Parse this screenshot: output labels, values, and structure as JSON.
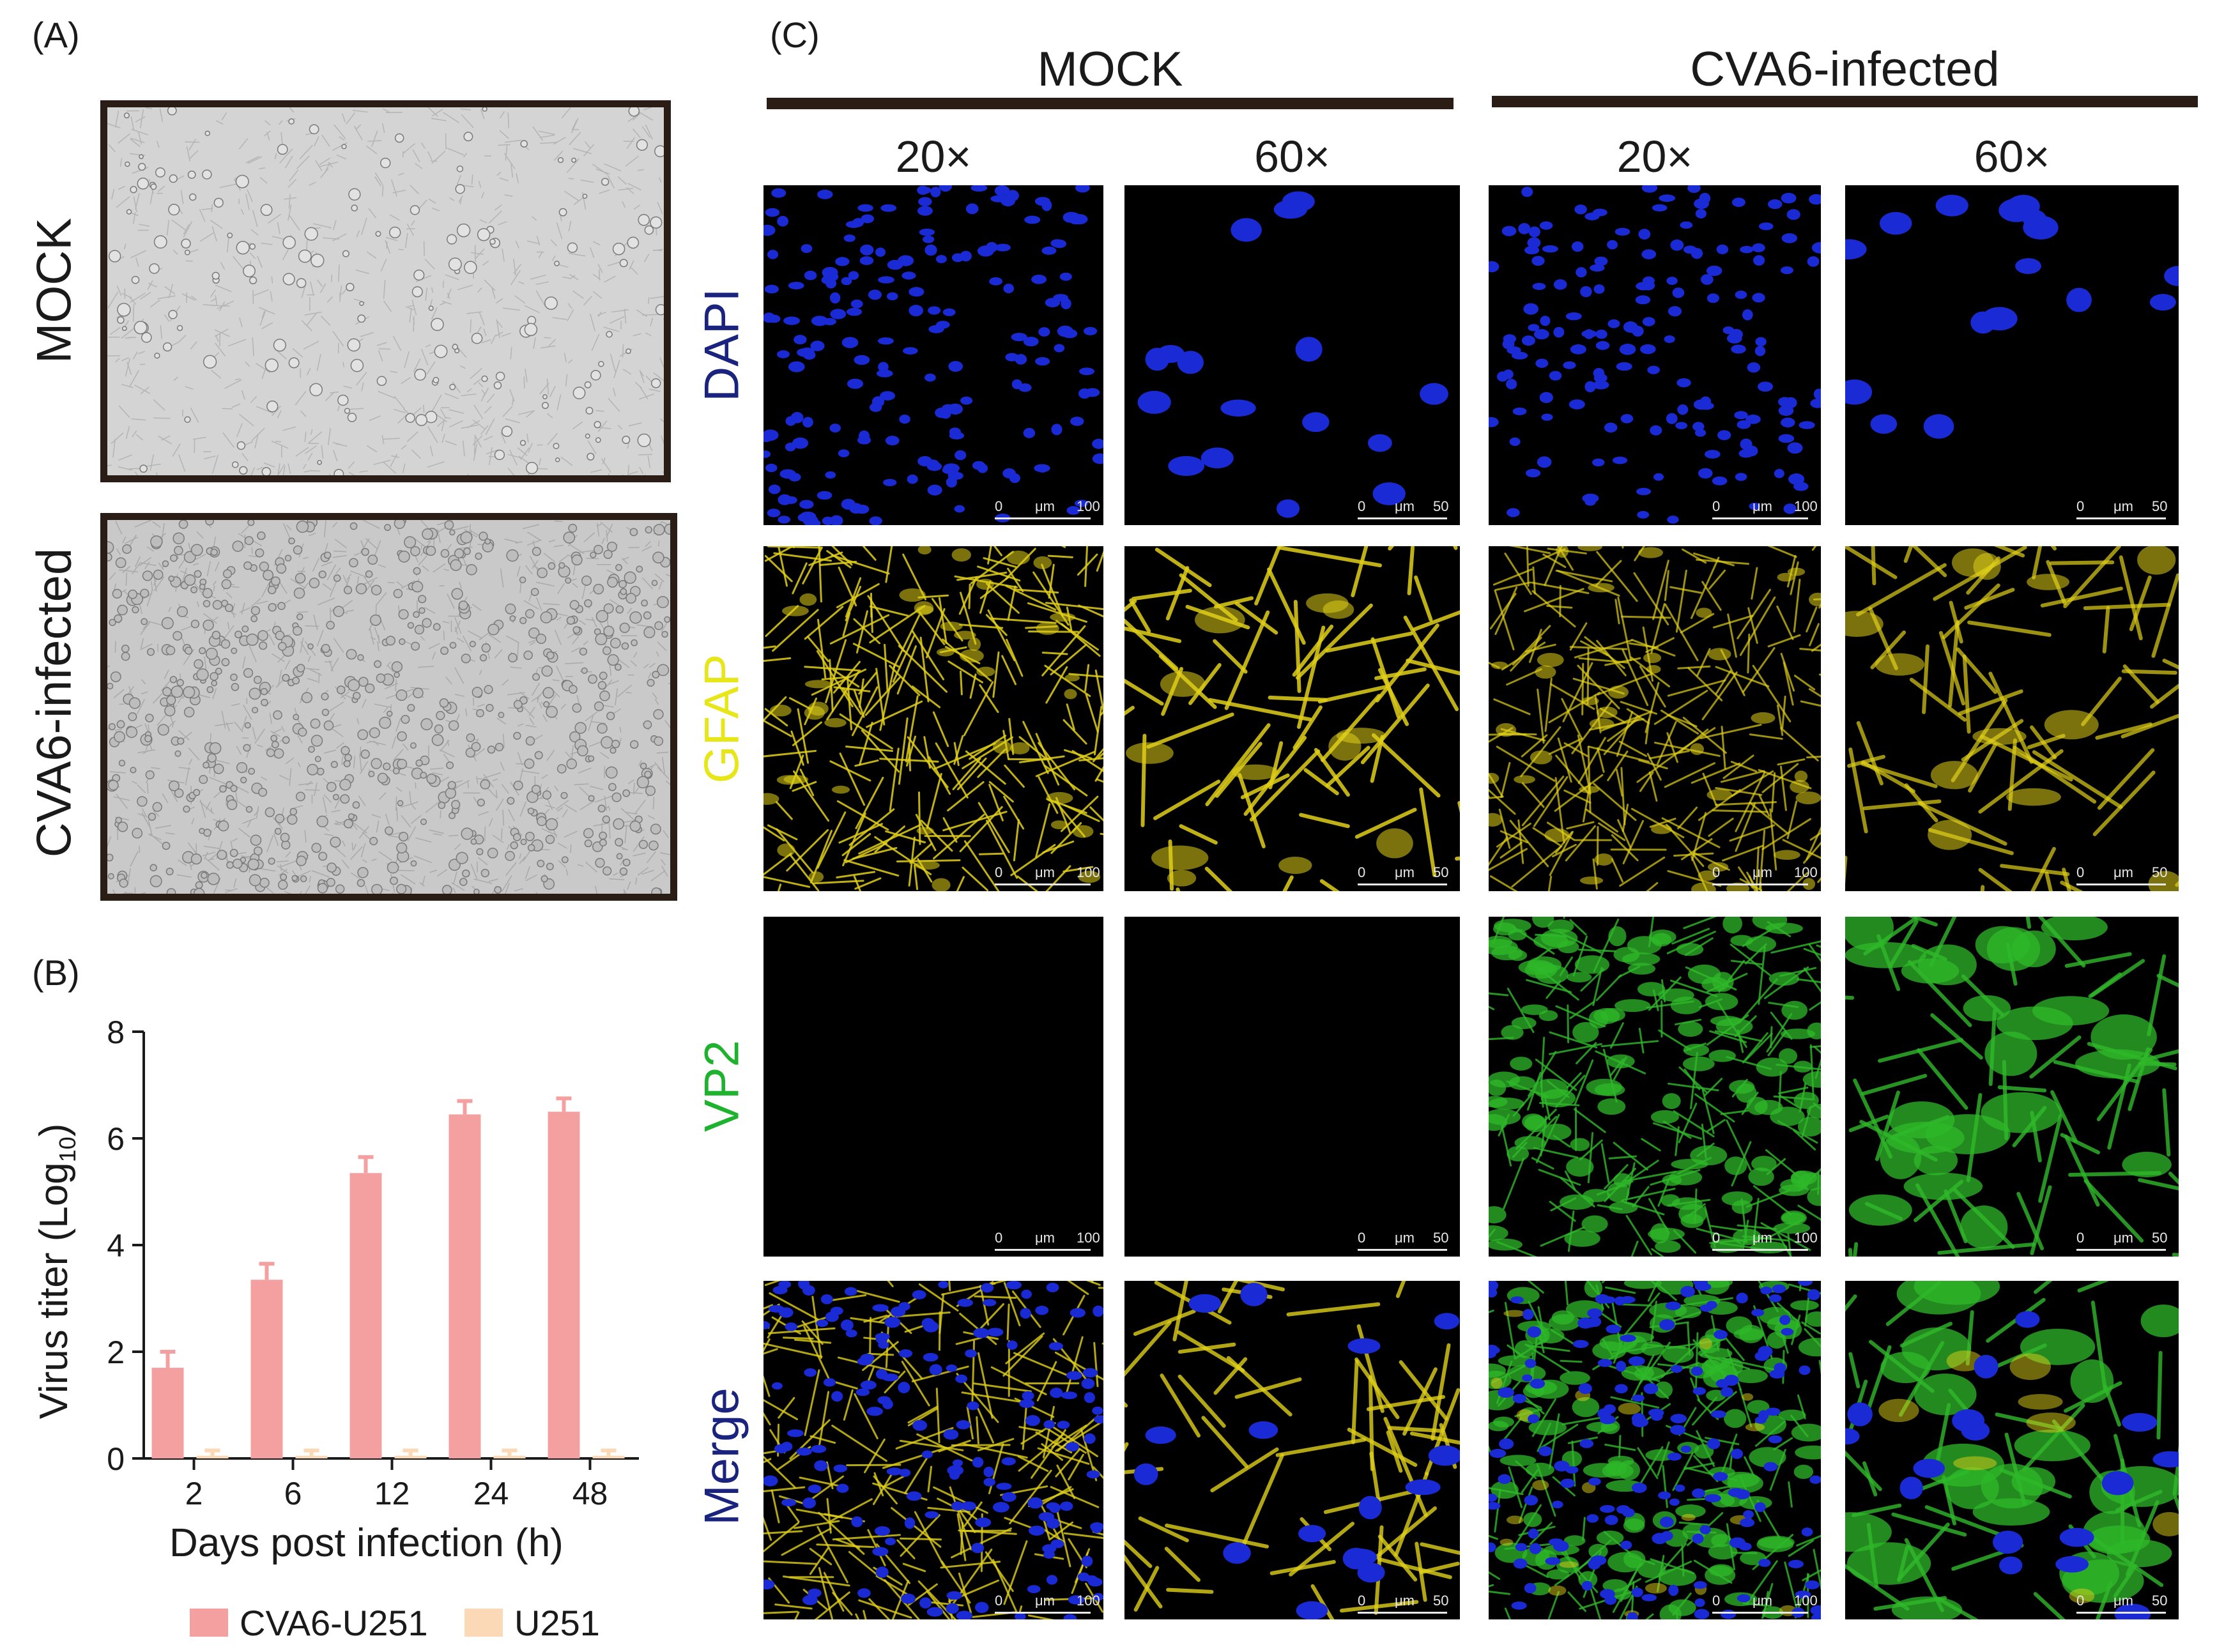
{
  "panel_labels": {
    "a": "(A)",
    "b": "(B)",
    "c": "(C)"
  },
  "panel_a": {
    "rows": [
      {
        "label": "MOCK"
      },
      {
        "label": "CVA6-infected"
      }
    ]
  },
  "panel_c": {
    "groups": [
      {
        "title": "MOCK",
        "magnifications": [
          "20×",
          "60×"
        ]
      },
      {
        "title": "CVA6-infected",
        "magnifications": [
          "20×",
          "60×"
        ]
      }
    ],
    "channels": [
      {
        "label": "DAPI",
        "color": "#1a237e"
      },
      {
        "label": "GFAP",
        "color": "#e6e619"
      },
      {
        "label": "VP2",
        "color": "#1fb22e"
      },
      {
        "label": "Merge",
        "color": "#1a237e"
      }
    ],
    "scale_bars": {
      "20x": {
        "zero": "0",
        "unit": "μm",
        "end": "100"
      },
      "60x": {
        "zero": "0",
        "unit": "μm",
        "end": "50"
      }
    },
    "image_colors": {
      "dapi": "#1a2bd6",
      "gfap": "#e0cf1a",
      "vp2": "#2fb82a",
      "background": "#000000"
    }
  },
  "chart_data": {
    "type": "bar",
    "categories": [
      "2",
      "6",
      "12",
      "24",
      "48"
    ],
    "series": [
      {
        "name": "CVA6-U251",
        "values": [
          1.7,
          3.35,
          5.35,
          6.45,
          6.5
        ],
        "errors": [
          0.3,
          0.3,
          0.3,
          0.25,
          0.25
        ],
        "color": "#f4a0a0"
      },
      {
        "name": "U251",
        "values": [
          0.05,
          0.05,
          0.05,
          0.05,
          0.05
        ],
        "errors": [
          0.1,
          0.1,
          0.1,
          0.1,
          0.1
        ],
        "color": "#fcd9b6"
      }
    ],
    "xlabel": "Days post infection (h)",
    "ylabel": "Virus titer (Log",
    "ylabel_sub": "10",
    "ylabel_end": ")",
    "ylim": [
      0,
      8
    ],
    "yticks": [
      0,
      2,
      4,
      6,
      8
    ],
    "legend": "bottom"
  }
}
